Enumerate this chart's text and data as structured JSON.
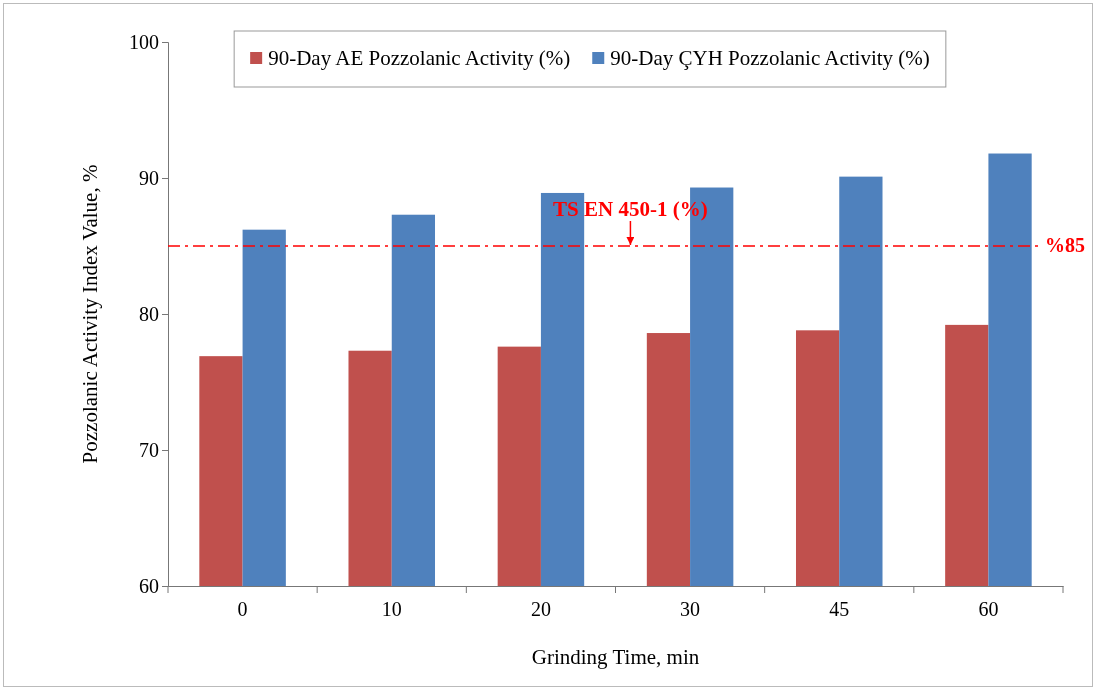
{
  "chart_data": {
    "type": "bar",
    "xlabel": "Grinding Time, min",
    "ylabel": "Pozzolanic Activity Index Value, %",
    "categories": [
      "0",
      "10",
      "20",
      "30",
      "45",
      "60"
    ],
    "series": [
      {
        "name": "90-Day AE Pozzolanic Activity (%)",
        "color": "#c0504d",
        "values": [
          76.9,
          77.3,
          77.6,
          78.6,
          78.8,
          79.2
        ]
      },
      {
        "name": "90-Day ÇYH Pozzolanic Activity (%)",
        "color": "#4f81bd",
        "values": [
          86.2,
          87.3,
          88.9,
          89.3,
          90.1,
          91.8
        ]
      }
    ],
    "ylim": [
      60,
      100
    ],
    "yticks": [
      60,
      70,
      80,
      90,
      100
    ],
    "grid": false,
    "legend": "top",
    "ref_lines": [
      {
        "axis": "y",
        "value": 85,
        "label": "%85",
        "color": "#ff0000",
        "line_style": "dashed"
      }
    ],
    "annotations": [
      {
        "text": "TS EN 450-1 (%)",
        "x": "30",
        "y": 85
      }
    ]
  }
}
